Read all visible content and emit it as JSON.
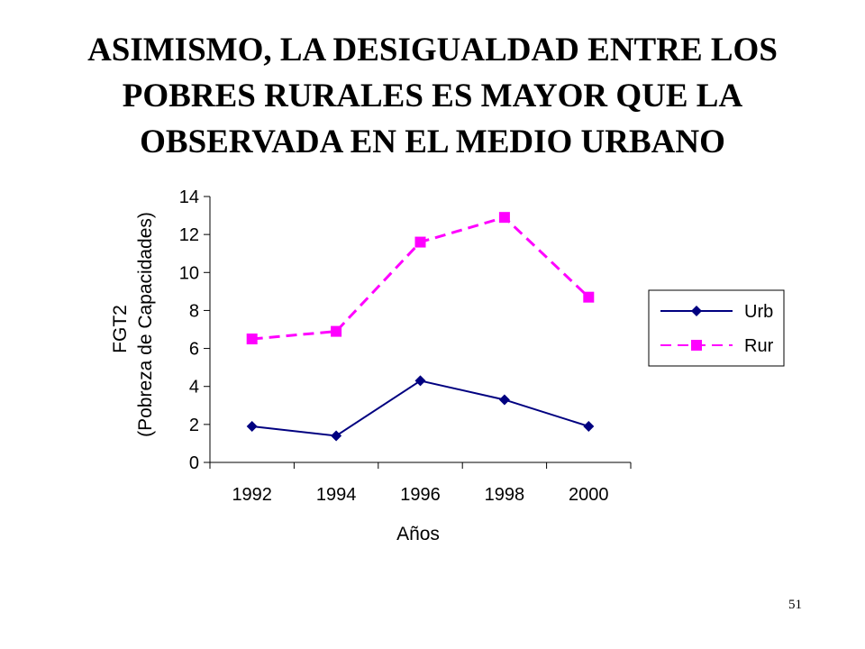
{
  "slide": {
    "title_lines": [
      "ASIMISMO, LA DESIGUALDAD ENTRE LOS",
      "POBRES RURALES ES MAYOR QUE LA",
      "OBSERVADA EN EL MEDIO URBANO"
    ],
    "page_number": "51"
  },
  "chart_data": {
    "type": "line",
    "categories": [
      "1992",
      "1994",
      "1996",
      "1998",
      "2000"
    ],
    "series": [
      {
        "name": "Urb",
        "values": [
          1.9,
          1.4,
          4.3,
          3.3,
          1.9
        ],
        "color": "#000080",
        "line_style": "solid",
        "marker": "diamond"
      },
      {
        "name": "Rur",
        "values": [
          6.5,
          6.9,
          11.6,
          12.9,
          8.7
        ],
        "color": "#ff00ff",
        "line_style": "dashed",
        "marker": "square"
      }
    ],
    "ylim": [
      0,
      14
    ],
    "yticks": [
      "0",
      "2",
      "4",
      "6",
      "8",
      "10",
      "12",
      "14"
    ],
    "xlabel": "Años",
    "ylabel_lines": [
      "FGT2",
      "(Pobreza de Capacidades)"
    ],
    "legend_position": "right",
    "grid": false
  }
}
